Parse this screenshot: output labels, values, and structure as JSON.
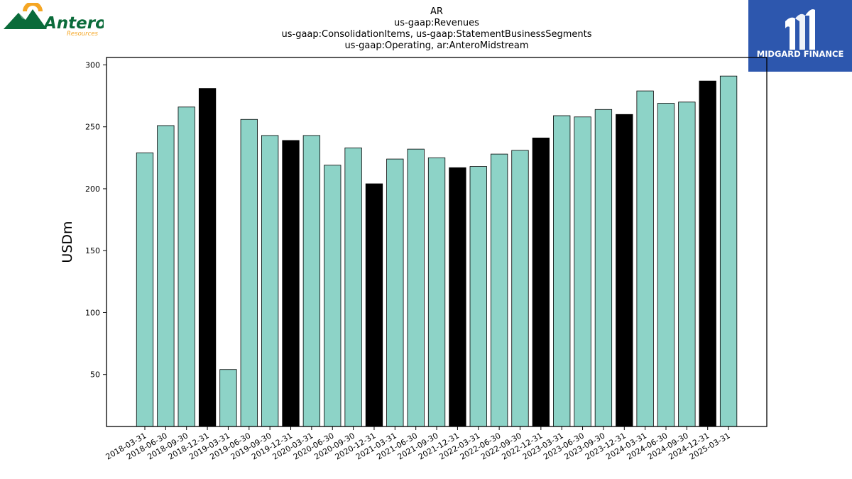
{
  "logos": {
    "left": {
      "icon": "antero-mountain-sun-icon",
      "name": "Antero",
      "sub": "Resources",
      "green": "#0a6b3a",
      "orange": "#f5a623"
    },
    "right": {
      "icon": "midgard-m-icon",
      "name": "MIDGARD FINANCE",
      "bg": "#2d57ae"
    }
  },
  "chart_data": {
    "type": "bar",
    "title": [
      "AR",
      "us-gaap:Revenues",
      "us-gaap:ConsolidationItems, us-gaap:StatementBusinessSegments",
      "us-gaap:Operating, ar:AnteroMidstream"
    ],
    "xlabel": "",
    "ylabel": "USDm",
    "ylim": [
      8,
      306
    ],
    "yticks": [
      50,
      100,
      150,
      200,
      250,
      300
    ],
    "colors": {
      "quarter": "#8dd3c7",
      "year_end": "#000000",
      "edge": "#000000"
    },
    "categories": [
      "2018-03-31",
      "2018-06-30",
      "2018-09-30",
      "2018-12-31",
      "2019-03-31",
      "2019-06-30",
      "2019-09-30",
      "2019-12-31",
      "2020-03-31",
      "2020-06-30",
      "2020-09-30",
      "2020-12-31",
      "2021-03-31",
      "2021-06-30",
      "2021-09-30",
      "2021-12-31",
      "2022-03-31",
      "2022-06-30",
      "2022-09-30",
      "2022-12-31",
      "2023-03-31",
      "2023-06-30",
      "2023-09-30",
      "2023-12-31",
      "2024-03-31",
      "2024-06-30",
      "2024-09-30",
      "2024-12-31",
      "2025-03-31"
    ],
    "values": [
      229,
      251,
      266,
      281,
      54,
      256,
      243,
      239,
      243,
      219,
      233,
      204,
      224,
      232,
      225,
      217,
      218,
      228,
      231,
      241,
      259,
      258,
      264,
      260,
      279,
      269,
      270,
      287,
      291
    ],
    "highlight": [
      false,
      false,
      false,
      true,
      false,
      false,
      false,
      true,
      false,
      false,
      false,
      true,
      false,
      false,
      false,
      true,
      false,
      false,
      false,
      true,
      false,
      false,
      false,
      true,
      false,
      false,
      false,
      true,
      false
    ],
    "grid": false,
    "legend": "none"
  }
}
